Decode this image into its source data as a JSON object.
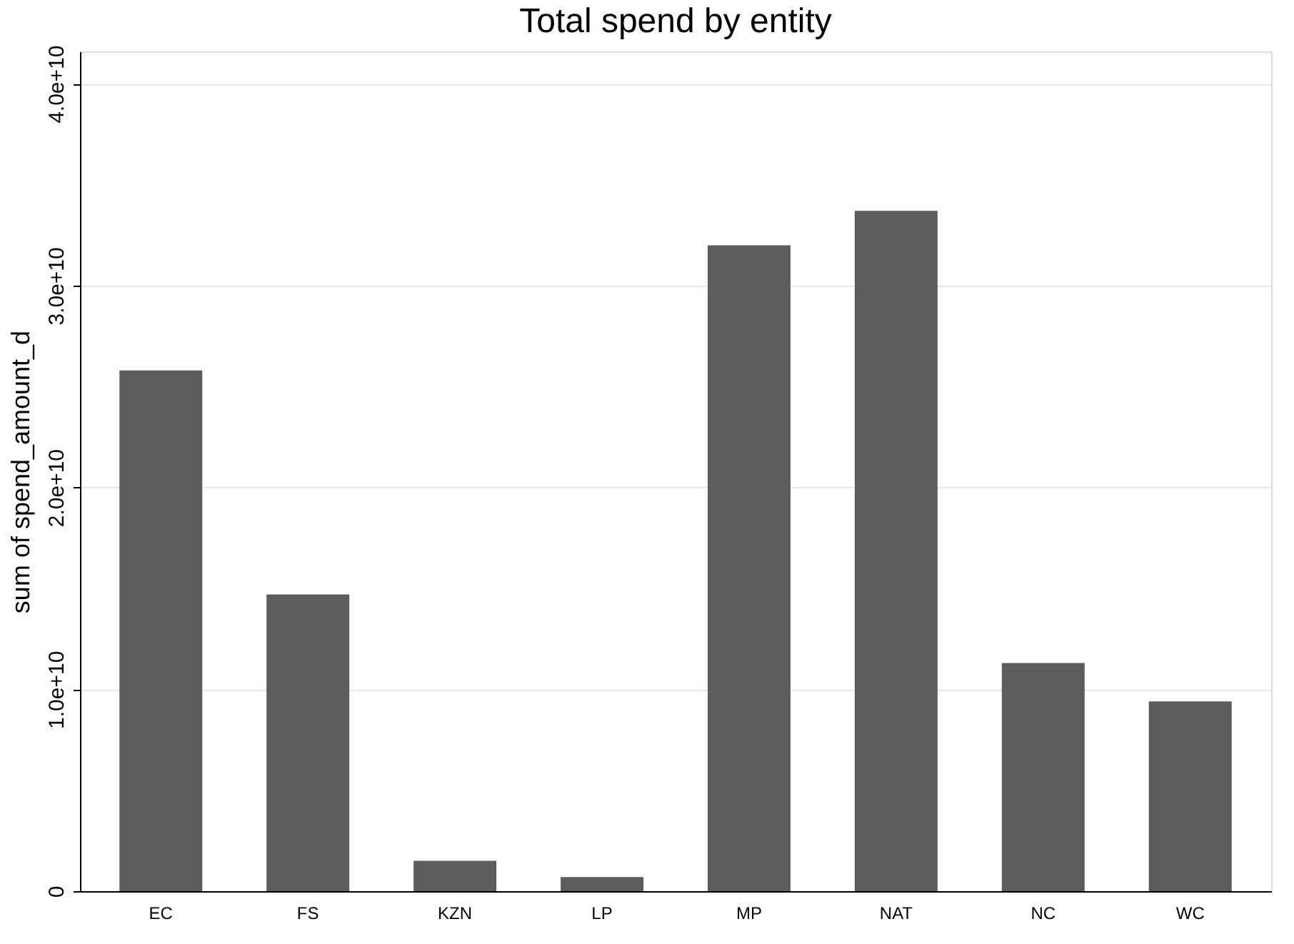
{
  "chart_data": {
    "type": "bar",
    "title": "Total spend by entity",
    "ylabel": "sum of spend_amount_d",
    "categories": [
      "EC",
      "FS",
      "KZN",
      "LP",
      "MP",
      "NAT",
      "NC",
      "WC"
    ],
    "values": [
      25800000000,
      14700000000,
      1500000000,
      700000000,
      32000000000,
      33700000000,
      11300000000,
      9400000000
    ],
    "color": "#5c5c5c",
    "ylim": [
      0,
      41600000000
    ],
    "yticks": [
      0,
      {
        "value": 10000000000,
        "label": "1.0e+10"
      },
      {
        "value": 20000000000,
        "label": "2.0e+10"
      },
      {
        "value": 30000000000,
        "label": "3.0e+10"
      },
      {
        "value": 40000000000,
        "label": "4.0e+10"
      }
    ],
    "grid": "y"
  }
}
